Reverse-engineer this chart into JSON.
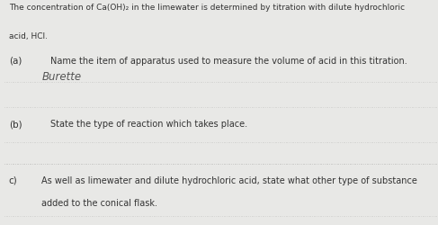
{
  "background_color": "#e8e8e6",
  "intro_line1": "The concentration of Ca(OH)₂ in the limewater is determined by titration with dilute hydrochloric",
  "intro_line2": "acid, HCl.",
  "qa_label": "(a)",
  "qa_text": "Name the item of apparatus used to measure the volume of acid in this titration.",
  "qa_answer": "Burette",
  "qb_label": "(b)",
  "qb_text": "State the type of reaction which takes place.",
  "qc_label": "c)",
  "qc_text1": "As well as limewater and dilute hydrochloric acid, state what other type of substance",
  "qc_text2": "added to the conical flask.",
  "dotted_color": "#999999",
  "text_color": "#333333",
  "intro_fontsize": 6.5,
  "label_fontsize": 7.5,
  "body_fontsize": 7.0,
  "answer_fontsize": 8.5
}
